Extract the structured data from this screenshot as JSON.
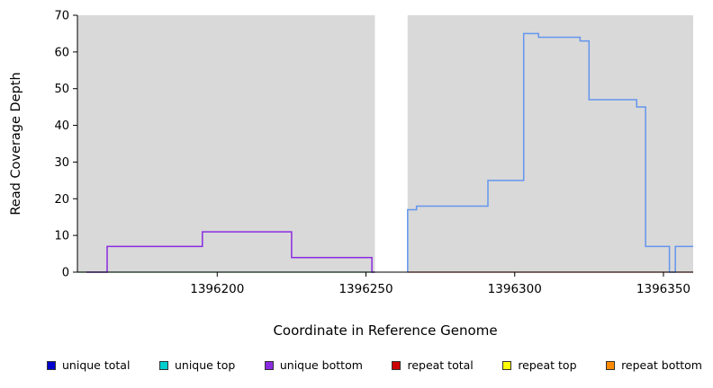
{
  "chart_data": {
    "type": "line",
    "title": "",
    "xlabel": "Coordinate in Reference Genome",
    "ylabel": "Read Coverage Depth",
    "xlim": [
      1396153,
      1396360
    ],
    "ylim": [
      0,
      70
    ],
    "x_ticks": [
      1396200,
      1396250,
      1396300,
      1396350
    ],
    "y_ticks": [
      0,
      10,
      20,
      30,
      40,
      50,
      60,
      70
    ],
    "panel_color": "#d9d9d9",
    "panels": [
      [
        1396153,
        1396253
      ],
      [
        1396264,
        1396360
      ]
    ],
    "series": [
      {
        "name": "baseline-left-green",
        "color": "#3cb054",
        "width": 1.2,
        "points": [
          [
            1396153,
            0
          ],
          [
            1396253,
            0
          ]
        ]
      },
      {
        "name": "baseline-right-red",
        "color": "#d8433c",
        "width": 1.2,
        "points": [
          [
            1396264,
            0
          ],
          [
            1396360,
            0
          ]
        ]
      },
      {
        "name": "unique-bottom-coverage",
        "color": "#8a2be2",
        "width": 1.5,
        "points": [
          [
            1396156,
            0
          ],
          [
            1396163,
            0
          ],
          [
            1396163,
            7
          ],
          [
            1396195,
            7
          ],
          [
            1396195,
            11
          ],
          [
            1396225,
            11
          ],
          [
            1396225,
            4
          ],
          [
            1396252,
            4
          ],
          [
            1396252,
            0
          ],
          [
            1396253,
            0
          ]
        ]
      },
      {
        "name": "right-region-coverage",
        "color": "#6495ed",
        "width": 1.5,
        "points": [
          [
            1396264,
            0
          ],
          [
            1396264,
            17
          ],
          [
            1396267,
            17
          ],
          [
            1396267,
            18
          ],
          [
            1396291,
            18
          ],
          [
            1396291,
            25
          ],
          [
            1396303,
            25
          ],
          [
            1396303,
            65
          ],
          [
            1396308,
            65
          ],
          [
            1396308,
            64
          ],
          [
            1396322,
            64
          ],
          [
            1396322,
            63
          ],
          [
            1396325,
            63
          ],
          [
            1396325,
            47
          ],
          [
            1396341,
            47
          ],
          [
            1396341,
            45
          ],
          [
            1396344,
            45
          ],
          [
            1396344,
            7
          ],
          [
            1396352,
            7
          ],
          [
            1396352,
            0
          ],
          [
            1396354,
            0
          ],
          [
            1396354,
            7
          ],
          [
            1396360,
            7
          ]
        ]
      }
    ],
    "legend": [
      {
        "label": "unique total",
        "color": "#0000cd"
      },
      {
        "label": "unique top",
        "color": "#00cdcd"
      },
      {
        "label": "unique bottom",
        "color": "#8a2be2"
      },
      {
        "label": "repeat total",
        "color": "#cd0000"
      },
      {
        "label": "repeat top",
        "color": "#ffff00"
      },
      {
        "label": "repeat bottom",
        "color": "#ff8c00"
      }
    ],
    "legend_position": "bottom",
    "grid": false
  }
}
